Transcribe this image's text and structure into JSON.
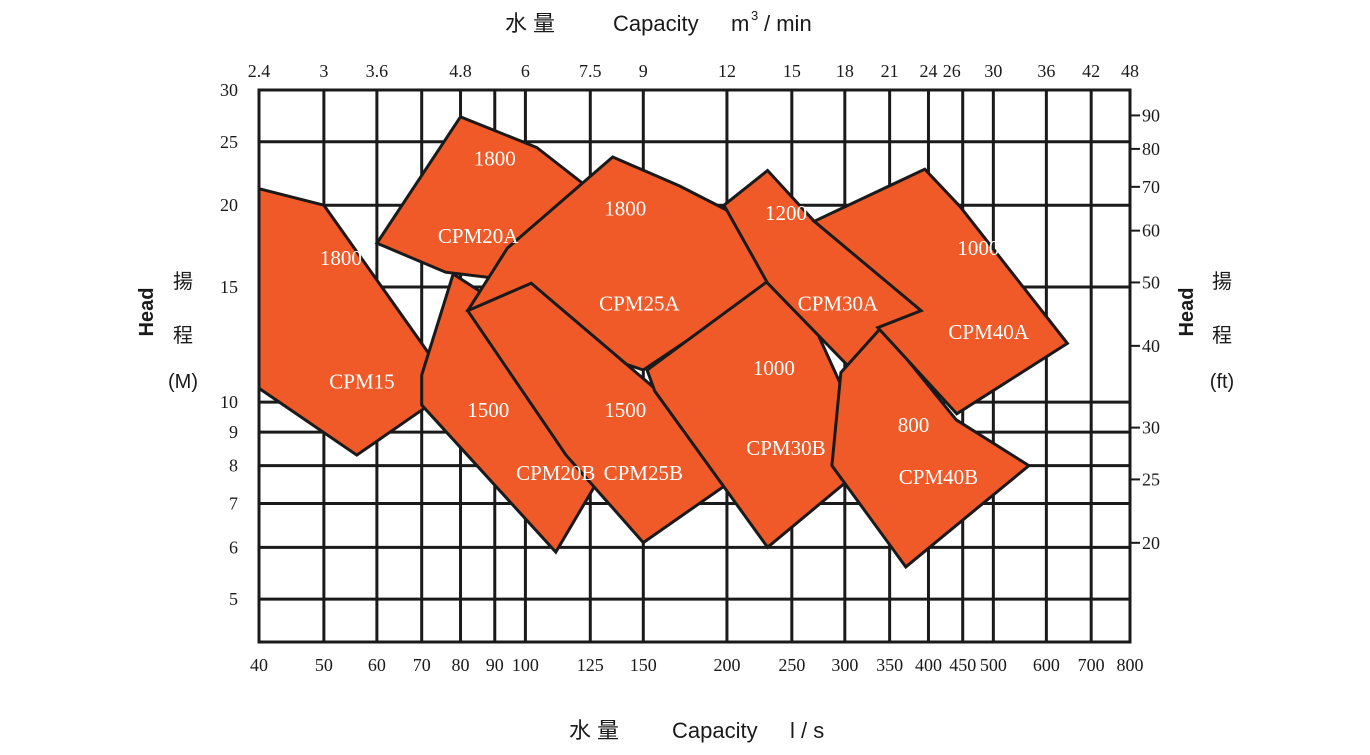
{
  "chart_data": {
    "type": "area",
    "title_top_cn": "水 量",
    "title_top_en": "Capacity",
    "title_top_unit_m": "m",
    "title_top_unit_sup": "3",
    "title_top_unit_rest": "/ min",
    "title_bottom_cn": "水 量",
    "title_bottom_en": "Capacity",
    "title_bottom_unit": "l / s",
    "ylabel_left_en": "Head",
    "ylabel_left_cn1": "揚",
    "ylabel_left_cn2": "程",
    "ylabel_left_unit": "(M)",
    "ylabel_right_en": "Head",
    "ylabel_right_cn1": "揚",
    "ylabel_right_cn2": "程",
    "ylabel_right_unit": "(ft)",
    "x_scale": "log",
    "y_scale": "log",
    "xlim": [
      40,
      800
    ],
    "ylim": [
      4.3,
      30
    ],
    "grid": true,
    "x_ticks_bottom": [
      40,
      50,
      60,
      70,
      80,
      90,
      100,
      125,
      150,
      200,
      250,
      300,
      350,
      400,
      450,
      500,
      600,
      700,
      800
    ],
    "x_tick_labels_bottom": [
      "40",
      "50",
      "60",
      "70",
      "80",
      "90",
      "100",
      "125",
      "150",
      "200",
      "250",
      "300",
      "350",
      "400",
      "450",
      "500",
      "600",
      "700",
      "800"
    ],
    "x_ticks_top": [
      2.4,
      3,
      3.6,
      4.8,
      6,
      7.5,
      9,
      12,
      15,
      18,
      21,
      24,
      26,
      30,
      36,
      42,
      48
    ],
    "x_tick_labels_top": [
      "2.4",
      "3",
      "3.6",
      "4.8",
      "6",
      "7.5",
      "9",
      "12",
      "15",
      "18",
      "21",
      "24",
      "26",
      "30",
      "36",
      "42",
      "48"
    ],
    "y_ticks_left": [
      30,
      25,
      20,
      15,
      10,
      9,
      8,
      7,
      6,
      5
    ],
    "y_tick_labels_left": [
      "30",
      "25",
      "20",
      "15",
      "10",
      "9",
      "8",
      "7",
      "6",
      "5"
    ],
    "y_ticks_right_ft": [
      90,
      80,
      70,
      60,
      50,
      40,
      30,
      25,
      20
    ],
    "y_tick_labels_right": [
      "90",
      "80",
      "70",
      "60",
      "50",
      "40",
      "30",
      "25",
      "20"
    ],
    "ft_per_m": 3.28084,
    "x_grid": [
      40,
      50,
      60,
      70,
      80,
      90,
      100,
      125,
      150,
      200,
      250,
      300,
      350,
      400,
      450,
      500,
      600,
      700,
      800
    ],
    "y_grid": [
      30,
      25,
      20,
      15,
      10,
      9,
      8,
      7,
      6,
      5
    ],
    "series": [
      {
        "name": "CPM15",
        "label": "CPM15",
        "speed_label": "1800",
        "label_at": [
          57,
          10.5
        ],
        "speed_at": [
          53,
          16.2
        ],
        "polygon": [
          [
            40,
            21.2
          ],
          [
            50,
            20.0
          ],
          [
            70,
            12.3
          ],
          [
            78,
            10.5
          ],
          [
            56,
            8.3
          ],
          [
            40,
            10.5
          ]
        ]
      },
      {
        "name": "CPM20B",
        "label": "CPM20B",
        "speed_label": "1500",
        "label_at": [
          111,
          7.6
        ],
        "speed_at": [
          88,
          9.5
        ],
        "polygon": [
          [
            70,
            11.0
          ],
          [
            78,
            15.7
          ],
          [
            114,
            12.2
          ],
          [
            137,
            8.5
          ],
          [
            111,
            5.9
          ],
          [
            70,
            9.9
          ]
        ]
      },
      {
        "name": "CPM20A",
        "label": "CPM20A",
        "speed_label": "1800",
        "label_at": [
          85,
          17.5
        ],
        "speed_at": [
          90,
          23.0
        ],
        "polygon": [
          [
            60,
            17.5
          ],
          [
            80,
            27.3
          ],
          [
            104,
            24.5
          ],
          [
            130,
            20.5
          ],
          [
            104,
            15.2
          ],
          [
            76,
            15.8
          ]
        ]
      },
      {
        "name": "CPM25A",
        "label": "CPM25A",
        "speed_label": "1800",
        "label_at": [
          148,
          13.8
        ],
        "speed_at": [
          141,
          19.3
        ],
        "polygon": [
          [
            94,
            17.2
          ],
          [
            135,
            23.7
          ],
          [
            170,
            21.4
          ],
          [
            203,
            19.5
          ],
          [
            234,
            15.2
          ],
          [
            150,
            11.2
          ],
          [
            82,
            13.8
          ]
        ]
      },
      {
        "name": "CPM25B",
        "label": "CPM25B",
        "speed_label": "1500",
        "label_at": [
          150,
          7.6
        ],
        "speed_at": [
          141,
          9.5
        ],
        "polygon": [
          [
            82,
            13.8
          ],
          [
            102,
            15.2
          ],
          [
            156,
            10.5
          ],
          [
            204,
            7.6
          ],
          [
            150,
            6.1
          ],
          [
            115,
            8.3
          ]
        ]
      },
      {
        "name": "CPM30B",
        "label": "CPM30B",
        "speed_label": "1000",
        "label_at": [
          245,
          8.3
        ],
        "speed_at": [
          235,
          11.0
        ],
        "polygon": [
          [
            152,
            11.2
          ],
          [
            230,
            15.3
          ],
          [
            262,
            14.0
          ],
          [
            332,
            8.2
          ],
          [
            230,
            6.0
          ],
          [
            156,
            10.4
          ]
        ]
      },
      {
        "name": "CPM30A",
        "label": "CPM30A",
        "speed_label": "1200",
        "label_at": [
          293,
          13.8
        ],
        "speed_at": [
          245,
          19.0
        ],
        "polygon": [
          [
            198,
            20.0
          ],
          [
            230,
            22.6
          ],
          [
            270,
            18.9
          ],
          [
            330,
            16.9
          ],
          [
            393,
            13.8
          ],
          [
            305,
            11.3
          ],
          [
            230,
            15.2
          ]
        ]
      },
      {
        "name": "CPM40B",
        "label": "CPM40B",
        "speed_label": "800",
        "label_at": [
          414,
          7.5
        ],
        "speed_at": [
          380,
          9.0
        ],
        "polygon": [
          [
            296,
            11.1
          ],
          [
            340,
            13.0
          ],
          [
            440,
            9.4
          ],
          [
            565,
            8.0
          ],
          [
            370,
            5.6
          ],
          [
            287,
            8.0
          ]
        ]
      },
      {
        "name": "CPM40A",
        "label": "CPM40A",
        "speed_label": "1000",
        "label_at": [
          492,
          12.5
        ],
        "speed_at": [
          475,
          16.8
        ],
        "polygon": [
          [
            270,
            18.9
          ],
          [
            395,
            22.7
          ],
          [
            446,
            19.9
          ],
          [
            645,
            12.3
          ],
          [
            441,
            9.6
          ],
          [
            336,
            13.0
          ],
          [
            390,
            13.8
          ]
        ]
      }
    ]
  }
}
